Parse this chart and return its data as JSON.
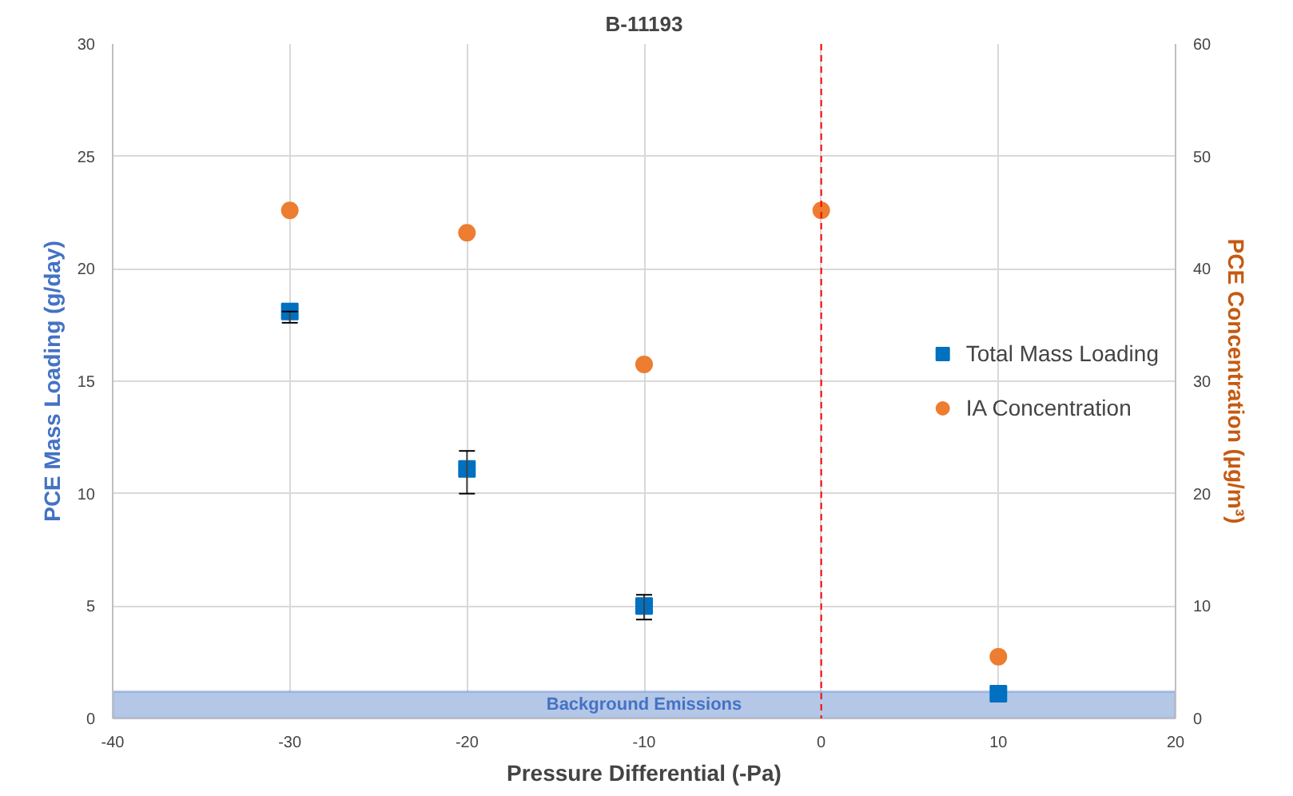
{
  "chart_data": {
    "type": "scatter",
    "title": "B-11193",
    "xlabel": "Pressure Differential (-Pa)",
    "ylabel": "PCE Mass Loading (g/day)",
    "y2label": "PCE Concentration (µg/m³)",
    "xlim": [
      -40,
      20
    ],
    "xticks": [
      -40,
      -30,
      -20,
      -10,
      0,
      10,
      20
    ],
    "ylim": [
      0,
      30
    ],
    "yticks": [
      0,
      5,
      10,
      15,
      20,
      25,
      30
    ],
    "y2lim": [
      0,
      60
    ],
    "y2ticks": [
      0,
      10,
      20,
      30,
      40,
      50,
      60
    ],
    "grid": true,
    "legend": "right",
    "series": [
      {
        "name": "Total Mass Loading",
        "color": "#0070c0",
        "marker": "square",
        "x": [
          -30,
          -20,
          -10,
          10
        ],
        "values": [
          18.1,
          11.1,
          5.0,
          1.1
        ],
        "errors": [
          [
            17.6,
            18.1
          ],
          [
            10.0,
            11.9
          ],
          [
            4.4,
            5.5
          ],
          null
        ]
      },
      {
        "name": "IA Concentration",
        "color": "#ed7d31",
        "marker": "circle",
        "axis": "y2",
        "x": [
          -30,
          -20,
          -10,
          0,
          10
        ],
        "values": [
          45.2,
          43.2,
          31.5,
          45.2,
          5.5
        ]
      }
    ],
    "ref_lines": [
      {
        "axis": "x",
        "value": 0,
        "label": null,
        "color": "#ff0000",
        "line_style": "dashed"
      }
    ],
    "bands": [
      {
        "axis": "y",
        "from": 0,
        "to": 1.2,
        "label": "Background Emissions",
        "color": "#b4c7e7"
      }
    ]
  }
}
